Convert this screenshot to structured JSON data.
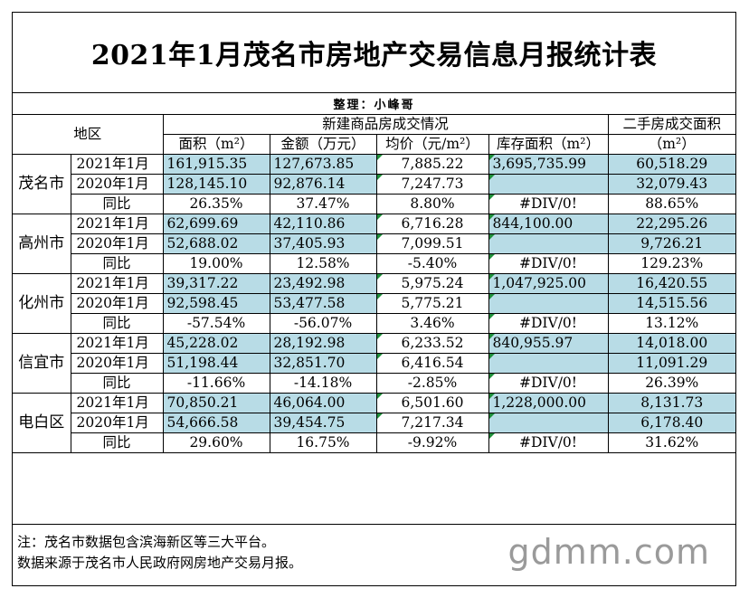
{
  "title": "2021年1月茂名市房地产交易信息月报统计表",
  "subtitle": "整理：小峰哥",
  "header": {
    "region": "地区",
    "new_group": "新建商品房成交情况",
    "second_group_line1": "二手房成交面积",
    "second_group_line2": "（m²）",
    "area": "面积（m²）",
    "amount": "金额（万元）",
    "price": "均价（元/m²）",
    "inventory": "库存面积（m²）"
  },
  "regions": [
    {
      "name": "茂名市",
      "rows": [
        {
          "period": "2021年1月",
          "area": "161,915.35",
          "amount": "127,673.85",
          "price": "7,885.22",
          "inventory": "3,695,735.99",
          "second": "60,518.29"
        },
        {
          "period": "2020年1月",
          "area": "128,145.10",
          "amount": "92,876.14",
          "price": "7,247.73",
          "inventory": "",
          "second": "32,079.43"
        },
        {
          "period": "同比",
          "area": "26.35%",
          "amount": "37.47%",
          "price": "8.80%",
          "inventory": "#DIV/0!",
          "second": "88.65%"
        }
      ]
    },
    {
      "name": "高州市",
      "rows": [
        {
          "period": "2021年1月",
          "area": "62,699.69",
          "amount": "42,110.86",
          "price": "6,716.28",
          "inventory": "844,100.00",
          "second": "22,295.26"
        },
        {
          "period": "2020年1月",
          "area": "52,688.02",
          "amount": "37,405.93",
          "price": "7,099.51",
          "inventory": "",
          "second": "9,726.21"
        },
        {
          "period": "同比",
          "area": "19.00%",
          "amount": "12.58%",
          "price": "-5.40%",
          "inventory": "#DIV/0!",
          "second": "129.23%"
        }
      ]
    },
    {
      "name": "化州市",
      "rows": [
        {
          "period": "2021年1月",
          "area": "39,317.22",
          "amount": "23,492.98",
          "price": "5,975.24",
          "inventory": "1,047,925.00",
          "second": "16,420.55"
        },
        {
          "period": "2020年1月",
          "area": "92,598.45",
          "amount": "53,477.58",
          "price": "5,775.21",
          "inventory": "",
          "second": "14,515.56"
        },
        {
          "period": "同比",
          "area": "-57.54%",
          "amount": "-56.07%",
          "price": "3.46%",
          "inventory": "#DIV/0!",
          "second": "13.12%"
        }
      ]
    },
    {
      "name": "信宜市",
      "rows": [
        {
          "period": "2021年1月",
          "area": "45,228.02",
          "amount": "28,192.98",
          "price": "6,233.52",
          "inventory": "840,955.97",
          "second": "14,018.00"
        },
        {
          "period": "2020年1月",
          "area": "51,198.44",
          "amount": "32,851.70",
          "price": "6,416.54",
          "inventory": "",
          "second": "11,091.29"
        },
        {
          "period": "同比",
          "area": "-11.66%",
          "amount": "-14.18%",
          "price": "-2.85%",
          "inventory": "#DIV/0!",
          "second": "26.39%"
        }
      ]
    },
    {
      "name": "电白区",
      "rows": [
        {
          "period": "2021年1月",
          "area": "70,850.21",
          "amount": "46,064.00",
          "price": "6,501.60",
          "inventory": "1,228,000.00",
          "second": "8,131.73"
        },
        {
          "period": "2020年1月",
          "area": "54,666.58",
          "amount": "39,454.75",
          "price": "7,217.34",
          "inventory": "",
          "second": "6,178.40"
        },
        {
          "period": "同比",
          "area": "29.60%",
          "amount": "16.75%",
          "price": "-9.92%",
          "inventory": "#DIV/0!",
          "second": "31.62%"
        }
      ]
    }
  ],
  "notes": {
    "line1": "注：茂名市数据包含滨海新区等三大平台。",
    "line2": "数据来源于茂名市人民政府网房地产交易月报。"
  },
  "watermark": "gdmm.com",
  "colors": {
    "highlight": "#b8dce6",
    "marker": "#1e8f3a"
  }
}
